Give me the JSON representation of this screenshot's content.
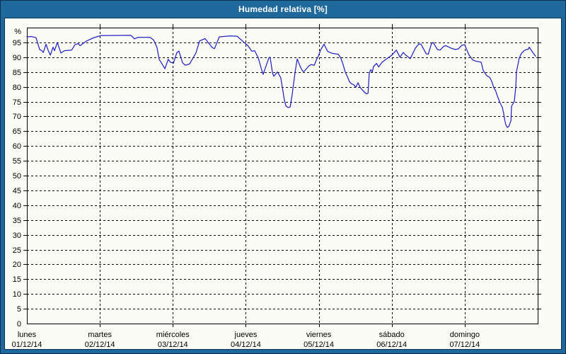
{
  "window": {
    "title": "Humedad relativa [%]"
  },
  "colors": {
    "frame": "#1e689b",
    "frame_border": "#0d3156",
    "canvas_bg": "#fcfcf6",
    "grid": "#000000",
    "axis": "#000000",
    "label_text": "#000000",
    "title_text": "#ffffff",
    "line": "#2222c3"
  },
  "chart_data": {
    "type": "line",
    "title": "Humedad relativa [%]",
    "ylabel": "%",
    "ylim": [
      0,
      100
    ],
    "yticks": [
      0,
      5,
      10,
      15,
      20,
      25,
      30,
      35,
      40,
      45,
      50,
      55,
      60,
      65,
      70,
      75,
      80,
      85,
      90,
      95
    ],
    "grid": "dashed",
    "legend": "none",
    "x_unit": "hours",
    "xlim": [
      0,
      168
    ],
    "day_span_hours": 24,
    "days": [
      {
        "name": "lunes",
        "date": "01/12/14"
      },
      {
        "name": "martes",
        "date": "02/12/14"
      },
      {
        "name": "miércoles",
        "date": "03/12/14"
      },
      {
        "name": "jueves",
        "date": "04/12/14"
      },
      {
        "name": "viernes",
        "date": "05/12/14"
      },
      {
        "name": "sábado",
        "date": "06/12/14"
      },
      {
        "name": "domingo",
        "date": "07/12/14"
      }
    ],
    "series": [
      {
        "name": "Humedad relativa",
        "color": "#2222c3",
        "points": [
          [
            0,
            97
          ],
          [
            0.7,
            96.9
          ],
          [
            1.4,
            97
          ],
          [
            3,
            96.6
          ],
          [
            4.2,
            92.6
          ],
          [
            4.9,
            92.2
          ],
          [
            5.4,
            91.6
          ],
          [
            6.3,
            94.4
          ],
          [
            7,
            92.3
          ],
          [
            7.7,
            90.7
          ],
          [
            8.6,
            93.4
          ],
          [
            9.1,
            92.2
          ],
          [
            10,
            95
          ],
          [
            11.2,
            91.4
          ],
          [
            12.3,
            92.2
          ],
          [
            14.7,
            92.4
          ],
          [
            15.8,
            94.2
          ],
          [
            16.8,
            94.6
          ],
          [
            17.5,
            93.9
          ],
          [
            19.5,
            95.4
          ],
          [
            21.6,
            96.4
          ],
          [
            23.3,
            97
          ],
          [
            24.4,
            97.3
          ],
          [
            34.2,
            97.4
          ],
          [
            35.4,
            96.2
          ],
          [
            36.5,
            96.7
          ],
          [
            40.5,
            96.7
          ],
          [
            41.7,
            95.8
          ],
          [
            42.8,
            93.3
          ],
          [
            43.5,
            89.3
          ],
          [
            44.7,
            87.3
          ],
          [
            45.4,
            86.1
          ],
          [
            46.5,
            89.3
          ],
          [
            47.2,
            88.3
          ],
          [
            48.2,
            88
          ],
          [
            49.3,
            91.5
          ],
          [
            50,
            92.1
          ],
          [
            51.2,
            88.1
          ],
          [
            52.1,
            87.3
          ],
          [
            53.5,
            87.7
          ],
          [
            55.6,
            91.4
          ],
          [
            56.8,
            95.5
          ],
          [
            58.6,
            96.3
          ],
          [
            61,
            93.2
          ],
          [
            61.7,
            92.9
          ],
          [
            63.3,
            96.9
          ],
          [
            66.8,
            97.2
          ],
          [
            69.1,
            97.1
          ],
          [
            71,
            95.4
          ],
          [
            72.6,
            94
          ],
          [
            74,
            92
          ],
          [
            74.9,
            92.2
          ],
          [
            76.1,
            89.8
          ],
          [
            77.3,
            85.4
          ],
          [
            77.7,
            84.2
          ],
          [
            79.6,
            89.8
          ],
          [
            80,
            90
          ],
          [
            80.8,
            84.6
          ],
          [
            81.2,
            83.6
          ],
          [
            82.4,
            85
          ],
          [
            83.1,
            83.8
          ],
          [
            83.5,
            83
          ],
          [
            84.2,
            78.6
          ],
          [
            84.7,
            75.4
          ],
          [
            85.2,
            73.5
          ],
          [
            85.9,
            73
          ],
          [
            86.6,
            73.2
          ],
          [
            87.3,
            77.8
          ],
          [
            88.2,
            85
          ],
          [
            88.9,
            89.4
          ],
          [
            90,
            86.6
          ],
          [
            90.7,
            85.3
          ],
          [
            91.2,
            85.2
          ],
          [
            92.8,
            87.1
          ],
          [
            93.5,
            87.5
          ],
          [
            94.5,
            87.3
          ],
          [
            95.4,
            89.5
          ],
          [
            95.9,
            90.4
          ],
          [
            96.6,
            92.4
          ],
          [
            97.7,
            94.4
          ],
          [
            98.9,
            92
          ],
          [
            100.1,
            91.4
          ],
          [
            101,
            91.2
          ],
          [
            102.4,
            91
          ],
          [
            103.3,
            89.6
          ],
          [
            104,
            87.5
          ],
          [
            104.7,
            85
          ],
          [
            105.6,
            83
          ],
          [
            106.1,
            81.7
          ],
          [
            106.8,
            81
          ],
          [
            107.5,
            80.7
          ],
          [
            108.2,
            79.8
          ],
          [
            108.9,
            81.4
          ],
          [
            109.6,
            79.8
          ],
          [
            110.3,
            79
          ],
          [
            111,
            78.2
          ],
          [
            111.7,
            77.6
          ],
          [
            112.2,
            77.8
          ],
          [
            112.6,
            84.6
          ],
          [
            113.1,
            85.8
          ],
          [
            113.6,
            85
          ],
          [
            114,
            86.8
          ],
          [
            115,
            87.9
          ],
          [
            115.7,
            86.7
          ],
          [
            116.8,
            88.3
          ],
          [
            118,
            89.2
          ],
          [
            119.1,
            90
          ],
          [
            119.8,
            90.5
          ],
          [
            121.5,
            92.4
          ],
          [
            122.7,
            90
          ],
          [
            123.8,
            91.6
          ],
          [
            124.5,
            90.8
          ],
          [
            126.1,
            89.5
          ],
          [
            127.8,
            93.1
          ],
          [
            128.9,
            94.5
          ],
          [
            129.6,
            94.4
          ],
          [
            131.3,
            91.2
          ],
          [
            132,
            91
          ],
          [
            133.1,
            94.7
          ],
          [
            133.6,
            95
          ],
          [
            135,
            92.6
          ],
          [
            135.9,
            92.4
          ],
          [
            137.1,
            93.7
          ],
          [
            137.8,
            93.9
          ],
          [
            139.4,
            93.1
          ],
          [
            140.8,
            92.6
          ],
          [
            141.9,
            92.8
          ],
          [
            143.1,
            94.1
          ],
          [
            144,
            94.2
          ],
          [
            144.7,
            92.4
          ],
          [
            145.4,
            90.8
          ],
          [
            146.6,
            89.1
          ],
          [
            147.5,
            88.7
          ],
          [
            149.4,
            88.3
          ],
          [
            150.1,
            85.4
          ],
          [
            151.3,
            83.7
          ],
          [
            152.2,
            83.2
          ],
          [
            152.9,
            81.8
          ],
          [
            153.6,
            79.6
          ],
          [
            154.1,
            78.8
          ],
          [
            154.8,
            76.7
          ],
          [
            155.7,
            74.4
          ],
          [
            156.4,
            73
          ],
          [
            156.8,
            71
          ],
          [
            157.1,
            69
          ],
          [
            157.5,
            67.2
          ],
          [
            158,
            66.3
          ],
          [
            158.5,
            66.6
          ],
          [
            159.2,
            68.6
          ],
          [
            159.4,
            73.4
          ],
          [
            159.9,
            74.4
          ],
          [
            160.3,
            75
          ],
          [
            160.8,
            80.1
          ],
          [
            161,
            85.1
          ],
          [
            161.5,
            87.5
          ],
          [
            161.9,
            89.6
          ],
          [
            162.6,
            91.2
          ],
          [
            163.3,
            92
          ],
          [
            163.8,
            92.4
          ],
          [
            165,
            92.8
          ],
          [
            165.2,
            93.4
          ],
          [
            166.4,
            91.6
          ],
          [
            167.3,
            90.3
          ]
        ]
      }
    ]
  }
}
